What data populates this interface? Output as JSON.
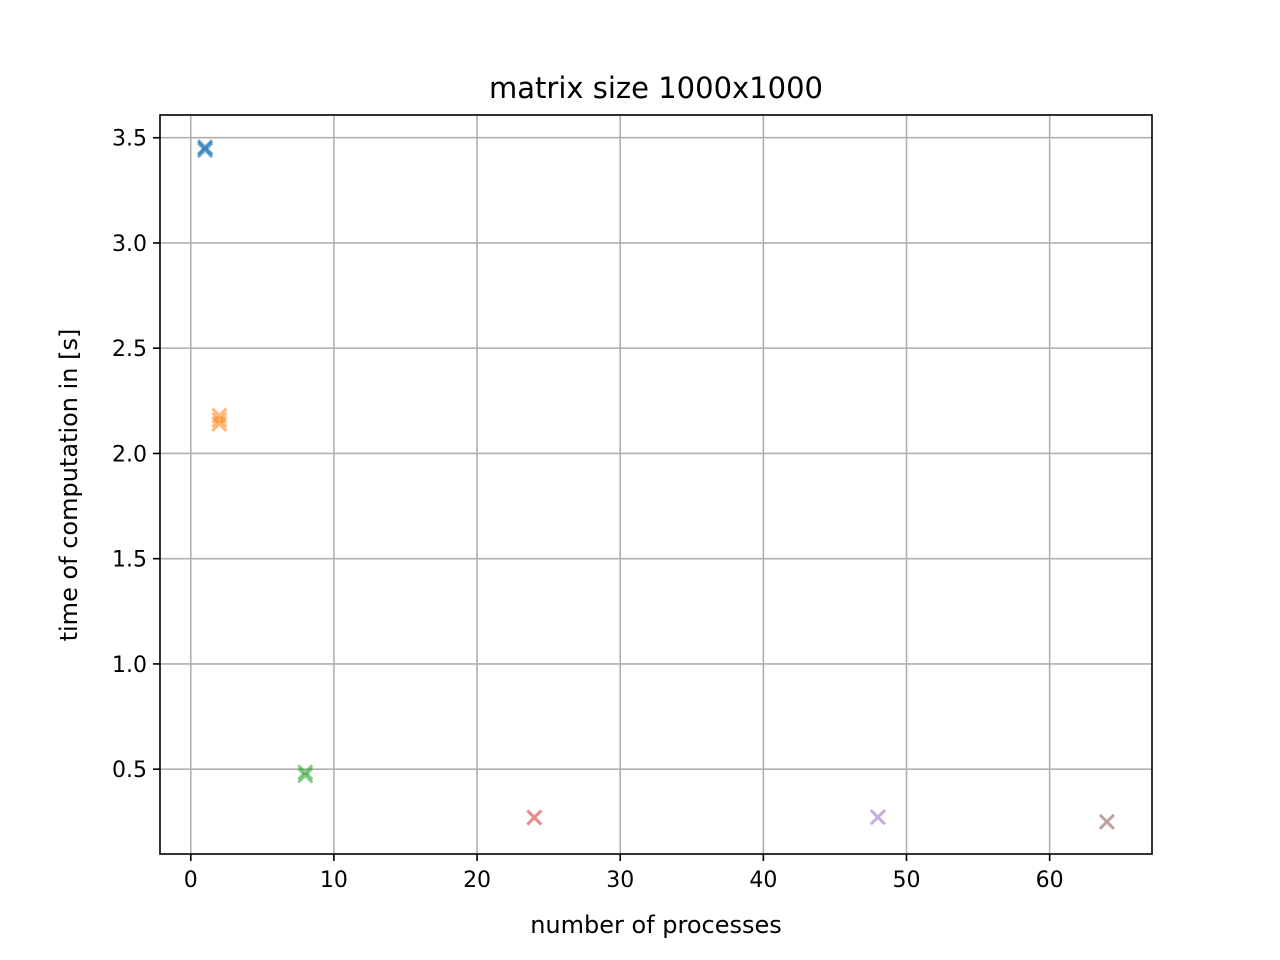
{
  "chart_data": {
    "type": "scatter",
    "title": "matrix size 1000x1000",
    "xlabel": "number of processes",
    "ylabel": "time of computation in [s]",
    "xlim": [
      -2.15,
      67.15
    ],
    "ylim": [
      0.097,
      3.608
    ],
    "xticks": [
      0,
      10,
      20,
      30,
      40,
      50,
      60
    ],
    "yticks": [
      0.5,
      1.0,
      1.5,
      2.0,
      2.5,
      3.0,
      3.5
    ],
    "xtick_labels": [
      "0",
      "10",
      "20",
      "30",
      "40",
      "50",
      "60"
    ],
    "ytick_labels": [
      "0.5",
      "1.0",
      "1.5",
      "2.0",
      "2.5",
      "3.0",
      "3.5"
    ],
    "grid": true,
    "marker": "x",
    "series": [
      {
        "color": "#1f77b4",
        "x": [
          1,
          1,
          1
        ],
        "y": [
          3.44,
          3.45,
          3.455
        ]
      },
      {
        "color": "#ff7f0e",
        "x": [
          2,
          2,
          2
        ],
        "y": [
          2.14,
          2.16,
          2.18
        ]
      },
      {
        "color": "#2ca02c",
        "x": [
          8,
          8
        ],
        "y": [
          0.47,
          0.485
        ]
      },
      {
        "color": "#d62728",
        "x": [
          24
        ],
        "y": [
          0.27
        ]
      },
      {
        "color": "#9467bd",
        "x": [
          48
        ],
        "y": [
          0.272
        ]
      },
      {
        "color": "#8c564b",
        "x": [
          64
        ],
        "y": [
          0.25
        ]
      }
    ]
  }
}
